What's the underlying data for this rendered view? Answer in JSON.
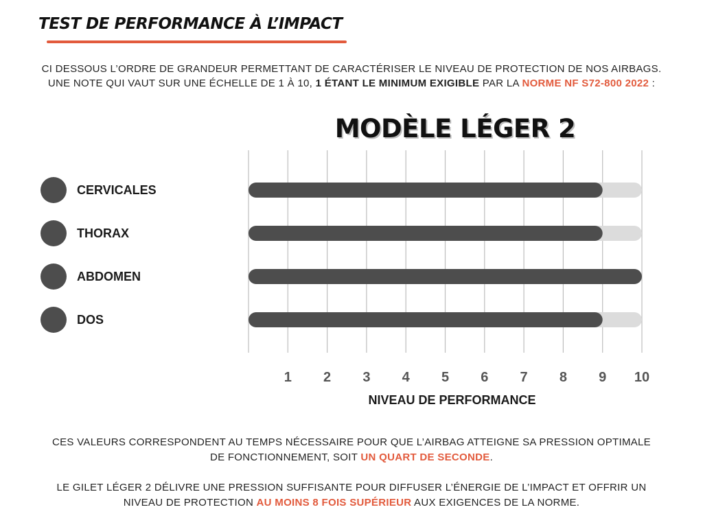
{
  "heading": "TEST DE PERFORMANCE À L’IMPACT",
  "intro": {
    "line1": "CI DESSOUS L’ORDRE DE GRANDEUR PERMETTANT DE CARACTÉRISER LE NIVEAU DE PROTECTION DE NOS AIRBAGS.",
    "line2_pre": "UNE NOTE QUI VAUT SUR UNE ÉCHELLE DE 1 À 10, ",
    "line2_bold": "1 ÉTANT LE MINIMUM EXIGIBLE",
    "line2_mid": " PAR LA ",
    "line2_accent": "NORME NF S72-800 2022",
    "line2_post": " :"
  },
  "chart_data": {
    "type": "bar",
    "orientation": "horizontal",
    "title": "MODÈLE LÉGER 2",
    "xlabel": "NIVEAU DE PERFORMANCE",
    "ylabel": "",
    "categories": [
      "CERVICALES",
      "THORAX",
      "ABDOMEN",
      "DOS"
    ],
    "values": [
      9,
      9,
      10,
      9
    ],
    "xlim": [
      0,
      10
    ],
    "ticks": [
      1,
      2,
      3,
      4,
      5,
      6,
      7,
      8,
      9,
      10
    ],
    "grid": true,
    "colors": {
      "bar": "#4d4d4d",
      "track": "#dcdcdc",
      "dot": "#4d4d4d",
      "grid": "#bdbdbd",
      "accent": "#e25a3c"
    }
  },
  "outro": {
    "p1_line1": "CES VALEURS CORRESPONDENT AU TEMPS NÉCESSAIRE POUR QUE L’AIRBAG ATTEIGNE SA PRESSION OPTIMALE",
    "p1_line2_pre": "DE FONCTIONNEMENT, SOIT ",
    "p1_line2_accent": "UN QUART DE SECONDE",
    "p1_line2_post": ".",
    "p2_line1": "LE GILET LÉGER 2 DÉLIVRE UNE PRESSION SUFFISANTE POUR DIFFUSER L’ÉNERGIE DE L’IMPACT ET OFFRIR UN",
    "p2_line2_pre": "NIVEAU DE PROTECTION ",
    "p2_line2_accent": "AU MOINS 8 FOIS SUPÉRIEUR",
    "p2_line2_post": " AUX EXIGENCES DE LA NORME."
  }
}
